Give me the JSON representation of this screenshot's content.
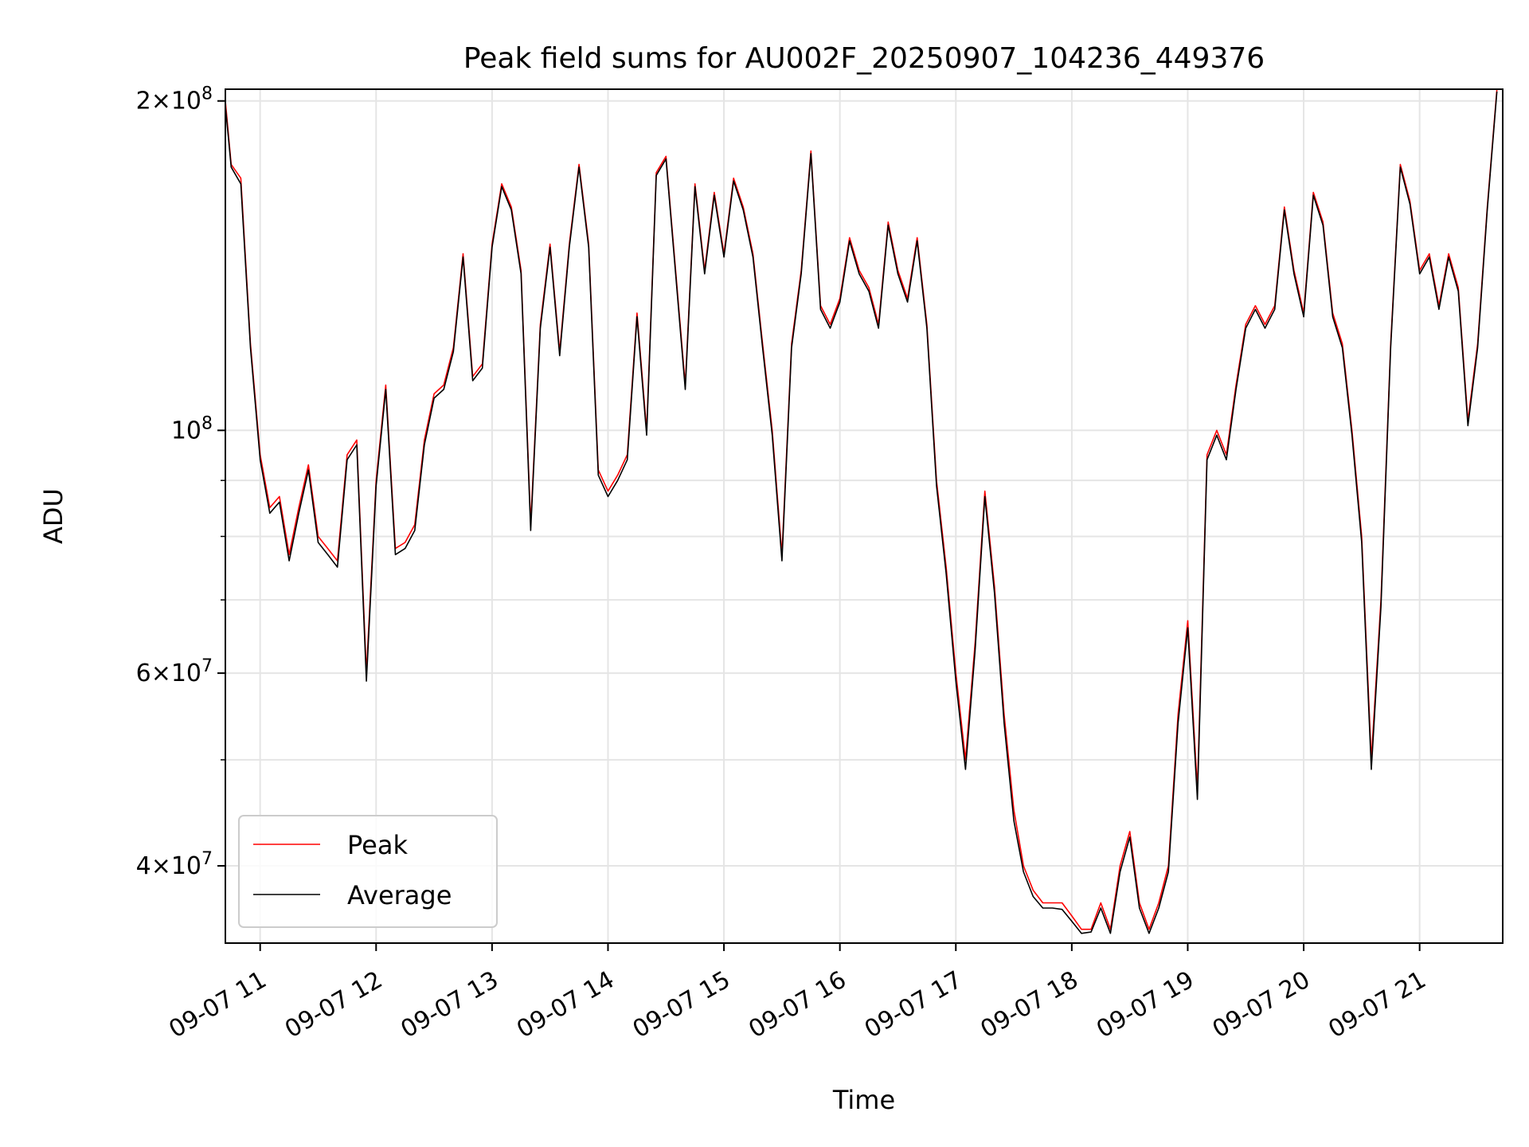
{
  "chart_data": {
    "type": "line",
    "title": "Peak field sums for AU002F_20250907_104236_449376",
    "xlabel": "Time",
    "ylabel": "ADU",
    "y_scale": "log",
    "ylim": [
      34000000,
      205000000
    ],
    "xlim": [
      "2025-09-07 10:42",
      "2025-09-07 21:43"
    ],
    "x_ticks": [
      {
        "t": "2025-09-07 11:00",
        "label": "09-07 11"
      },
      {
        "t": "2025-09-07 12:00",
        "label": "09-07 12"
      },
      {
        "t": "2025-09-07 13:00",
        "label": "09-07 13"
      },
      {
        "t": "2025-09-07 14:00",
        "label": "09-07 14"
      },
      {
        "t": "2025-09-07 15:00",
        "label": "09-07 15"
      },
      {
        "t": "2025-09-07 16:00",
        "label": "09-07 16"
      },
      {
        "t": "2025-09-07 17:00",
        "label": "09-07 17"
      },
      {
        "t": "2025-09-07 18:00",
        "label": "09-07 18"
      },
      {
        "t": "2025-09-07 19:00",
        "label": "09-07 19"
      },
      {
        "t": "2025-09-07 20:00",
        "label": "09-07 20"
      },
      {
        "t": "2025-09-07 21:00",
        "label": "09-07 21"
      }
    ],
    "y_ticks_major": [
      {
        "v": 40000000,
        "base": "4",
        "exp": "7"
      },
      {
        "v": 60000000,
        "base": "6",
        "exp": "7"
      },
      {
        "v": 100000000,
        "base": "",
        "exp": "8"
      },
      {
        "v": 200000000,
        "base": "2",
        "exp": "8"
      }
    ],
    "y_ticks_minor": [
      50000000,
      70000000,
      80000000,
      90000000
    ],
    "grid": true,
    "legend_position": "lower-left",
    "series": [
      {
        "name": "Peak",
        "color": "#ff0000"
      },
      {
        "name": "Average",
        "color": "#000000"
      }
    ],
    "x": [
      "2025-09-07 10:42",
      "2025-09-07 10:45",
      "2025-09-07 10:50",
      "2025-09-07 10:55",
      "2025-09-07 11:00",
      "2025-09-07 11:05",
      "2025-09-07 11:10",
      "2025-09-07 11:15",
      "2025-09-07 11:20",
      "2025-09-07 11:25",
      "2025-09-07 11:30",
      "2025-09-07 11:35",
      "2025-09-07 11:40",
      "2025-09-07 11:45",
      "2025-09-07 11:50",
      "2025-09-07 11:55",
      "2025-09-07 12:00",
      "2025-09-07 12:05",
      "2025-09-07 12:10",
      "2025-09-07 12:15",
      "2025-09-07 12:20",
      "2025-09-07 12:25",
      "2025-09-07 12:30",
      "2025-09-07 12:35",
      "2025-09-07 12:40",
      "2025-09-07 12:45",
      "2025-09-07 12:50",
      "2025-09-07 12:55",
      "2025-09-07 13:00",
      "2025-09-07 13:05",
      "2025-09-07 13:10",
      "2025-09-07 13:15",
      "2025-09-07 13:20",
      "2025-09-07 13:25",
      "2025-09-07 13:30",
      "2025-09-07 13:35",
      "2025-09-07 13:40",
      "2025-09-07 13:45",
      "2025-09-07 13:50",
      "2025-09-07 13:55",
      "2025-09-07 14:00",
      "2025-09-07 14:05",
      "2025-09-07 14:10",
      "2025-09-07 14:15",
      "2025-09-07 14:20",
      "2025-09-07 14:25",
      "2025-09-07 14:30",
      "2025-09-07 14:35",
      "2025-09-07 14:40",
      "2025-09-07 14:45",
      "2025-09-07 14:50",
      "2025-09-07 14:55",
      "2025-09-07 15:00",
      "2025-09-07 15:05",
      "2025-09-07 15:10",
      "2025-09-07 15:15",
      "2025-09-07 15:20",
      "2025-09-07 15:25",
      "2025-09-07 15:30",
      "2025-09-07 15:35",
      "2025-09-07 15:40",
      "2025-09-07 15:45",
      "2025-09-07 15:50",
      "2025-09-07 15:55",
      "2025-09-07 16:00",
      "2025-09-07 16:05",
      "2025-09-07 16:10",
      "2025-09-07 16:15",
      "2025-09-07 16:20",
      "2025-09-07 16:25",
      "2025-09-07 16:30",
      "2025-09-07 16:35",
      "2025-09-07 16:40",
      "2025-09-07 16:45",
      "2025-09-07 16:50",
      "2025-09-07 16:55",
      "2025-09-07 17:00",
      "2025-09-07 17:05",
      "2025-09-07 17:10",
      "2025-09-07 17:15",
      "2025-09-07 17:20",
      "2025-09-07 17:25",
      "2025-09-07 17:30",
      "2025-09-07 17:35",
      "2025-09-07 17:40",
      "2025-09-07 17:45",
      "2025-09-07 17:50",
      "2025-09-07 17:55",
      "2025-09-07 18:00",
      "2025-09-07 18:05",
      "2025-09-07 18:10",
      "2025-09-07 18:15",
      "2025-09-07 18:20",
      "2025-09-07 18:25",
      "2025-09-07 18:30",
      "2025-09-07 18:35",
      "2025-09-07 18:40",
      "2025-09-07 18:45",
      "2025-09-07 18:50",
      "2025-09-07 18:55",
      "2025-09-07 19:00",
      "2025-09-07 19:05",
      "2025-09-07 19:10",
      "2025-09-07 19:15",
      "2025-09-07 19:20",
      "2025-09-07 19:25",
      "2025-09-07 19:30",
      "2025-09-07 19:35",
      "2025-09-07 19:40",
      "2025-09-07 19:45",
      "2025-09-07 19:50",
      "2025-09-07 19:55",
      "2025-09-07 20:00",
      "2025-09-07 20:05",
      "2025-09-07 20:10",
      "2025-09-07 20:15",
      "2025-09-07 20:20",
      "2025-09-07 20:25",
      "2025-09-07 20:30",
      "2025-09-07 20:35",
      "2025-09-07 20:40",
      "2025-09-07 20:45",
      "2025-09-07 20:50",
      "2025-09-07 20:55",
      "2025-09-07 21:00",
      "2025-09-07 21:05",
      "2025-09-07 21:10",
      "2025-09-07 21:15",
      "2025-09-07 21:20",
      "2025-09-07 21:25",
      "2025-09-07 21:30",
      "2025-09-07 21:35",
      "2025-09-07 21:40",
      "2025-09-07 21:43"
    ],
    "peak": [
      200,
      175,
      170,
      120,
      95,
      85,
      87,
      77,
      85,
      93,
      80,
      78,
      76,
      95,
      98,
      60,
      90,
      110,
      78,
      79,
      82,
      98,
      108,
      110,
      119,
      145,
      112,
      115,
      148,
      168,
      160,
      140,
      82,
      125,
      148,
      118,
      148,
      175,
      148,
      92,
      88,
      91,
      95,
      128,
      100,
      172,
      178,
      140,
      110,
      168,
      140,
      165,
      145,
      170,
      160,
      145,
      120,
      100,
      77,
      120,
      140,
      180,
      130,
      125,
      132,
      150,
      140,
      135,
      125,
      155,
      140,
      132,
      150,
      125,
      90,
      75,
      60,
      50,
      64,
      88,
      72,
      55,
      45,
      40,
      38,
      37,
      37,
      37,
      36,
      35,
      35,
      37,
      35,
      40,
      43,
      37,
      35,
      37,
      40,
      55,
      67,
      47,
      95,
      100,
      95,
      110,
      125,
      130,
      125,
      130,
      160,
      140,
      128,
      165,
      155,
      128,
      120,
      100,
      80,
      50,
      70,
      120,
      175,
      162,
      140,
      145,
      130,
      145,
      135,
      102,
      120,
      160,
      205
    ],
    "average": [
      198,
      174,
      168,
      119,
      94,
      84,
      86,
      76,
      84,
      92,
      79,
      77,
      75,
      94,
      97,
      59,
      89,
      109,
      77,
      78,
      81,
      97,
      107,
      109,
      118,
      144,
      111,
      114,
      147,
      167,
      159,
      139,
      81,
      124,
      147,
      117,
      147,
      174,
      147,
      91,
      87,
      90,
      94,
      127,
      99,
      171,
      177,
      139,
      109,
      167,
      139,
      164,
      144,
      169,
      159,
      144,
      119,
      99,
      76,
      119,
      139,
      179,
      129,
      124,
      131,
      149,
      139,
      134,
      124,
      154,
      139,
      131,
      149,
      124,
      89,
      74,
      59,
      49,
      63,
      87,
      71,
      54,
      44,
      39.5,
      37.5,
      36.6,
      36.6,
      36.5,
      35.6,
      34.7,
      34.8,
      36.6,
      34.7,
      39.5,
      42.5,
      36.6,
      34.7,
      36.6,
      39.5,
      54,
      66,
      46,
      94,
      99,
      94,
      109,
      124,
      129,
      124,
      129,
      159,
      139,
      127,
      164,
      154,
      127,
      119,
      99,
      79,
      49,
      69,
      119,
      174,
      161,
      139,
      144,
      129,
      144,
      134,
      101,
      119,
      159,
      204
    ],
    "values_unit_multiplier": 1000000
  }
}
